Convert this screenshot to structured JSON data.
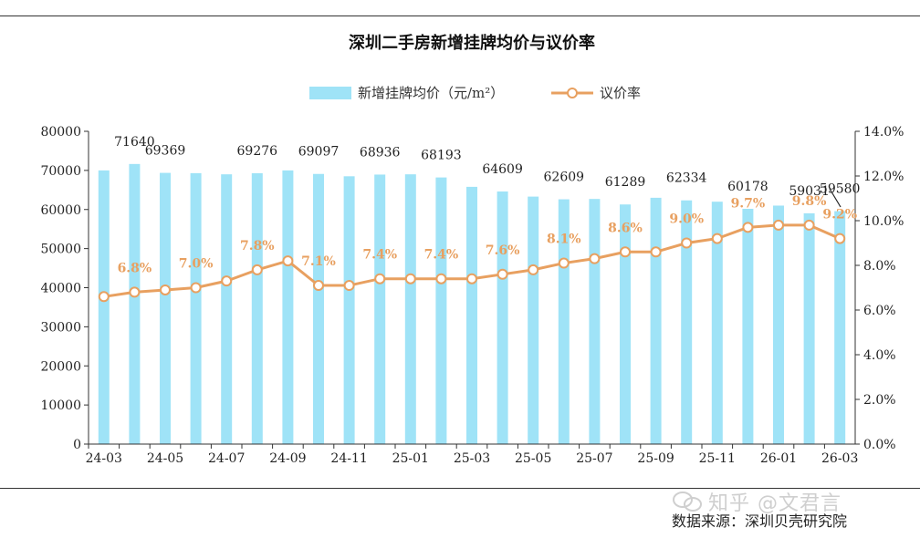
{
  "chart_data": {
    "type": "bar",
    "title": "深圳二手房新增挂牌均价与议价率",
    "source": "数据来源：深圳贝壳研究院",
    "watermark": "知乎 @文君言",
    "x": [
      "24-03",
      "24-04",
      "24-05",
      "24-06",
      "24-07",
      "24-08",
      "24-09",
      "24-10",
      "24-11",
      "24-12",
      "25-01",
      "25-02",
      "25-03",
      "25-04",
      "25-05",
      "25-06",
      "25-07",
      "25-08",
      "25-09",
      "25-10",
      "25-11",
      "25-12",
      "26-01",
      "26-02",
      "26-03"
    ],
    "x_tick_labels": [
      "24-03",
      "24-05",
      "24-07",
      "24-09",
      "24-11",
      "25-01",
      "25-03",
      "25-05",
      "25-07",
      "25-09",
      "25-11",
      "26-01",
      "26-03"
    ],
    "series": [
      {
        "name": "新增挂牌均价（元/m²）",
        "type": "bar",
        "axis": "left",
        "color": "#9fe3f7",
        "values": [
          70000,
          71640,
          69369,
          69300,
          69000,
          69276,
          70000,
          69097,
          68500,
          68936,
          69000,
          68193,
          65800,
          64609,
          63300,
          62609,
          62700,
          61289,
          63000,
          62334,
          62000,
          60178,
          61000,
          59031,
          59580
        ],
        "labels": {
          "1": "71640",
          "2": "69369",
          "5": "69276",
          "7": "69097",
          "9": "68936",
          "11": "68193",
          "13": "64609",
          "15": "62609",
          "17": "61289",
          "19": "62334",
          "21": "60178",
          "23": "59031",
          "24": "59580"
        }
      },
      {
        "name": "议价率",
        "type": "line",
        "axis": "right",
        "color": "#e8a060",
        "values": [
          6.6,
          6.8,
          6.9,
          7.0,
          7.3,
          7.8,
          8.2,
          7.1,
          7.1,
          7.4,
          7.4,
          7.4,
          7.4,
          7.6,
          7.8,
          8.1,
          8.3,
          8.6,
          8.6,
          9.0,
          9.2,
          9.7,
          9.8,
          9.8,
          9.2
        ],
        "labels": {
          "1": "6.8%",
          "3": "7.0%",
          "5": "7.8%",
          "7": "7.1%",
          "9": "7.4%",
          "11": "7.4%",
          "13": "7.6%",
          "15": "8.1%",
          "17": "8.6%",
          "19": "9.0%",
          "21": "9.7%",
          "23": "9.8%",
          "24": "9.2%"
        }
      }
    ],
    "y_left": {
      "min": 0,
      "max": 80000,
      "step": 10000,
      "ticks": [
        "0",
        "10000",
        "20000",
        "30000",
        "40000",
        "50000",
        "60000",
        "70000",
        "80000"
      ]
    },
    "y_right": {
      "min": 0,
      "max": 14,
      "step": 2,
      "ticks": [
        "0.0%",
        "2.0%",
        "4.0%",
        "6.0%",
        "8.0%",
        "10.0%",
        "12.0%",
        "14.0%"
      ]
    },
    "legend_position": "top-center",
    "grid": false
  }
}
